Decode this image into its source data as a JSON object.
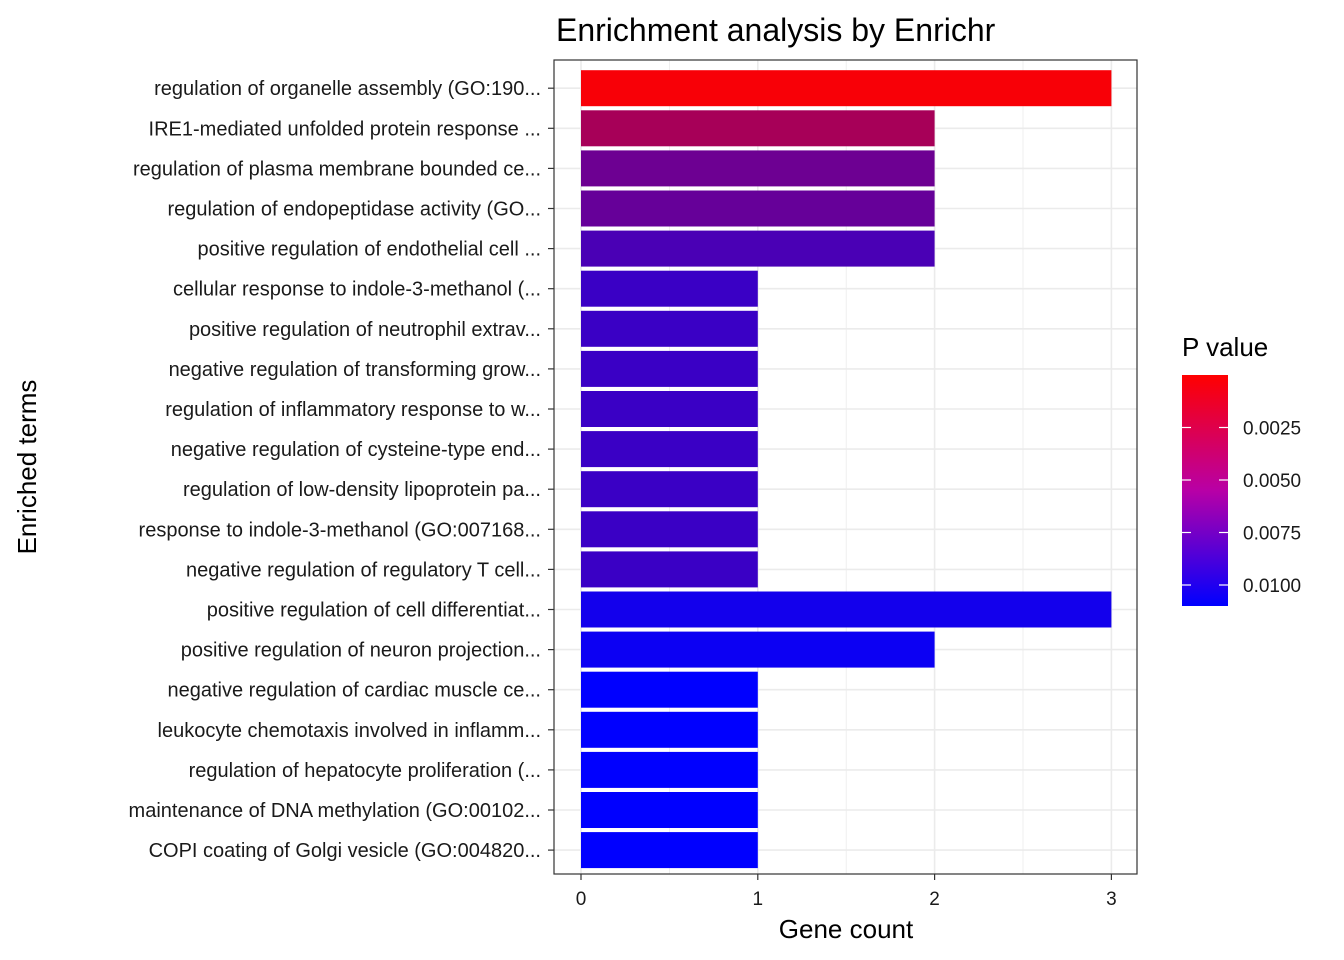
{
  "chart_data": {
    "type": "bar",
    "orientation": "horizontal",
    "title": "Enrichment analysis by Enrichr",
    "xlabel": "Gene count",
    "ylabel": "Enriched terms",
    "xlim": [
      0,
      3
    ],
    "x_ticks": [
      "0",
      "1",
      "2",
      "3"
    ],
    "grid": true,
    "color_low": "#FF0000",
    "color_high": "#0000FF",
    "legend": {
      "title": "P value",
      "placement": "right",
      "range": [
        0.0,
        0.011
      ],
      "ticks": [
        {
          "label": "0.0025",
          "value": 0.0025
        },
        {
          "label": "0.0050",
          "value": 0.005
        },
        {
          "label": "0.0075",
          "value": 0.0075
        },
        {
          "label": "0.0100",
          "value": 0.01
        }
      ]
    },
    "categories": [
      "regulation of organelle assembly (GO:190...",
      "IRE1-mediated unfolded protein response ...",
      "regulation of plasma membrane bounded ce...",
      "regulation of endopeptidase activity (GO...",
      "positive regulation of endothelial cell ...",
      "cellular response to indole-3-methanol (...",
      "positive regulation of neutrophil extrav...",
      "negative regulation of transforming grow...",
      "regulation of inflammatory response to w...",
      "negative regulation of cysteine-type end...",
      "regulation of low-density lipoprotein pa...",
      "response to indole-3-methanol (GO:007168...",
      "negative regulation of regulatory T cell...",
      "positive regulation of cell differentiat...",
      "positive regulation of neuron projection...",
      "negative regulation of cardiac muscle ce...",
      "leukocyte chemotaxis involved in inflamm...",
      "regulation of hepatocyte proliferation (...",
      "maintenance of DNA methylation (GO:00102...",
      "COPI coating of Golgi vesicle (GO:004820..."
    ],
    "values": [
      3,
      2,
      2,
      2,
      2,
      1,
      1,
      1,
      1,
      1,
      1,
      1,
      1,
      3,
      2,
      1,
      1,
      1,
      1,
      1
    ],
    "p_values": [
      0.0003,
      0.0038,
      0.0063,
      0.0066,
      0.0078,
      0.0085,
      0.0085,
      0.0085,
      0.0085,
      0.0085,
      0.0085,
      0.0085,
      0.0085,
      0.0102,
      0.0105,
      0.011,
      0.011,
      0.011,
      0.011,
      0.011
    ]
  }
}
